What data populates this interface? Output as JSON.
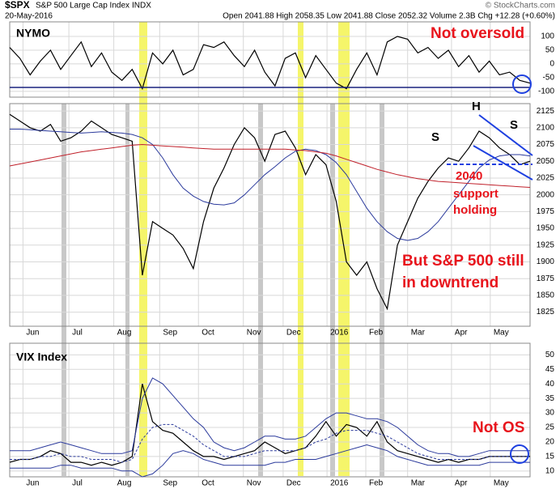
{
  "header": {
    "symbol": "$SPX",
    "name": "S&P 500 Large Cap Index",
    "exchange": "INDX",
    "date": "20-May-2016",
    "quote": "Open 2041.88  High 2058.35  Low 2041.88  Close 2052.32  Volume 2.3B  Chg +12.28 (+0.60%)",
    "credit": "© StockCharts.com"
  },
  "chart_data": [
    {
      "type": "line",
      "title": "NYMO",
      "annotations": [
        "Not oversold"
      ],
      "x": [
        0,
        1,
        2,
        3,
        4,
        5,
        6,
        7,
        8,
        9,
        10,
        11,
        12,
        13,
        14,
        15,
        16,
        17,
        18,
        19,
        20,
        21,
        22,
        23,
        24,
        25,
        26,
        27,
        28,
        29,
        30,
        31,
        32,
        33,
        34,
        35,
        36,
        37,
        38,
        39,
        40,
        41,
        42,
        43,
        44,
        45,
        46,
        47,
        48,
        49,
        50,
        51
      ],
      "xlim": [
        0,
        51
      ],
      "ylim": [
        -121,
        153
      ],
      "yticks": [
        100,
        50,
        0,
        -50,
        -100
      ],
      "grid": true,
      "series": [
        {
          "color": "#000000",
          "values": [
            60,
            20,
            -40,
            10,
            50,
            -20,
            30,
            80,
            -10,
            40,
            -30,
            -60,
            -20,
            -90,
            40,
            0,
            50,
            -40,
            -20,
            70,
            60,
            80,
            30,
            -10,
            50,
            -30,
            -80,
            20,
            40,
            -50,
            30,
            -20,
            -70,
            -90,
            -20,
            40,
            -40,
            80,
            100,
            90,
            40,
            60,
            20,
            50,
            -10,
            30,
            -30,
            10,
            -40,
            -30,
            -60,
            -70
          ]
        }
      ]
    },
    {
      "type": "line",
      "annotations": [
        "S",
        "H",
        "S",
        "2040",
        "support",
        "holding",
        "But S&P 500 still",
        "in downtrend"
      ],
      "x": [
        0,
        1,
        2,
        3,
        4,
        5,
        6,
        7,
        8,
        9,
        10,
        11,
        12,
        13,
        14,
        15,
        16,
        17,
        18,
        19,
        20,
        21,
        22,
        23,
        24,
        25,
        26,
        27,
        28,
        29,
        30,
        31,
        32,
        33,
        34,
        35,
        36,
        37,
        38,
        39,
        40,
        41,
        42,
        43,
        44,
        45,
        46,
        47,
        48,
        49,
        50,
        51
      ],
      "xlim": [
        0,
        51
      ],
      "xticks": [
        {
          "value": 1.3,
          "label": "Jun"
        },
        {
          "value": 5.8,
          "label": "Jul"
        },
        {
          "value": 10.2,
          "label": "Aug"
        },
        {
          "value": 14.7,
          "label": "Sep"
        },
        {
          "value": 18.5,
          "label": "Oct"
        },
        {
          "value": 22.9,
          "label": "Nov"
        },
        {
          "value": 26.8,
          "label": "Dec"
        },
        {
          "value": 31.1,
          "label": "2016"
        },
        {
          "value": 34.9,
          "label": "Feb"
        },
        {
          "value": 39,
          "label": "Mar"
        },
        {
          "value": 43.3,
          "label": "Apr"
        },
        {
          "value": 47.1,
          "label": "May"
        }
      ],
      "ylim": [
        1804,
        2136
      ],
      "yticks": [
        2125,
        2100,
        2075,
        2050,
        2025,
        2000,
        1975,
        1950,
        1925,
        1900,
        1875,
        1850,
        1825
      ],
      "grid": true,
      "series": [
        {
          "color": "#000000",
          "values": [
            2120,
            2110,
            2100,
            2095,
            2105,
            2080,
            2085,
            2095,
            2110,
            2100,
            2090,
            2085,
            2080,
            1880,
            1960,
            1950,
            1940,
            1920,
            1890,
            1960,
            2010,
            2040,
            2075,
            2100,
            2085,
            2050,
            2090,
            2095,
            2070,
            2030,
            2060,
            2045,
            1990,
            1900,
            1880,
            1900,
            1860,
            1830,
            1925,
            1960,
            1995,
            2020,
            2040,
            2055,
            2050,
            2070,
            2095,
            2085,
            2070,
            2060,
            2045,
            2050
          ]
        },
        {
          "color": "#2b3a9c",
          "values": [
            2098,
            2098,
            2097,
            2096,
            2095,
            2094,
            2093,
            2092,
            2093,
            2094,
            2093,
            2092,
            2090,
            2085,
            2075,
            2055,
            2030,
            2010,
            1998,
            1990,
            1986,
            1985,
            1988,
            2000,
            2015,
            2030,
            2042,
            2055,
            2065,
            2068,
            2066,
            2060,
            2048,
            2030,
            2005,
            1980,
            1960,
            1945,
            1935,
            1932,
            1935,
            1945,
            1960,
            1980,
            2000,
            2020,
            2040,
            2052,
            2058,
            2060,
            2060,
            2058
          ]
        },
        {
          "color": "#c0202a",
          "values": [
            2043,
            2046,
            2049,
            2052,
            2055,
            2058,
            2061,
            2064,
            2066,
            2068,
            2070,
            2072,
            2074,
            2075,
            2074,
            2073,
            2072,
            2071,
            2070,
            2069,
            2068,
            2068,
            2068,
            2068,
            2068,
            2068,
            2068,
            2068,
            2067,
            2066,
            2064,
            2062,
            2058,
            2053,
            2048,
            2043,
            2038,
            2034,
            2030,
            2027,
            2024,
            2022,
            2020,
            2019,
            2018,
            2017,
            2016,
            2015,
            2014,
            2013,
            2012,
            2011
          ]
        }
      ]
    },
    {
      "type": "line",
      "title": "VIX Index",
      "annotations": [
        "Not OS"
      ],
      "x": [
        0,
        1,
        2,
        3,
        4,
        5,
        6,
        7,
        8,
        9,
        10,
        11,
        12,
        13,
        14,
        15,
        16,
        17,
        18,
        19,
        20,
        21,
        22,
        23,
        24,
        25,
        26,
        27,
        28,
        29,
        30,
        31,
        32,
        33,
        34,
        35,
        36,
        37,
        38,
        39,
        40,
        41,
        42,
        43,
        44,
        45,
        46,
        47,
        48,
        49,
        50,
        51
      ],
      "xlim": [
        0,
        51
      ],
      "xticks": [
        {
          "value": 1.3,
          "label": "Jun"
        },
        {
          "value": 5.8,
          "label": "Jul"
        },
        {
          "value": 10.2,
          "label": "Aug"
        },
        {
          "value": 14.7,
          "label": "Sep"
        },
        {
          "value": 18.5,
          "label": "Oct"
        },
        {
          "value": 22.9,
          "label": "Nov"
        },
        {
          "value": 26.8,
          "label": "Dec"
        },
        {
          "value": 31.1,
          "label": "2016"
        },
        {
          "value": 34.9,
          "label": "Feb"
        },
        {
          "value": 39,
          "label": "Mar"
        },
        {
          "value": 43.3,
          "label": "Apr"
        },
        {
          "value": 47.1,
          "label": "May"
        }
      ],
      "ylim": [
        8,
        54
      ],
      "yticks": [
        50,
        45,
        40,
        35,
        30,
        25,
        20,
        15,
        10
      ],
      "grid": true,
      "series": [
        {
          "color": "#000000",
          "values": [
            13,
            14,
            14,
            15,
            17,
            16,
            13,
            13,
            12,
            13,
            12,
            13,
            15,
            40,
            27,
            24,
            23,
            20,
            17,
            15,
            15,
            14,
            15,
            16,
            17,
            20,
            18,
            16,
            17,
            18,
            22,
            27,
            22,
            26,
            25,
            22,
            27,
            20,
            17,
            16,
            15,
            14,
            13,
            14,
            13,
            14,
            14,
            15,
            15,
            15,
            15,
            15
          ]
        },
        {
          "color": "#2b3a9c",
          "values": [
            17,
            17,
            17,
            18,
            19,
            20,
            19,
            18,
            17,
            16,
            16,
            16,
            17,
            35,
            42,
            40,
            36,
            32,
            28,
            25,
            20,
            18,
            17,
            18,
            20,
            22,
            22,
            21,
            21,
            22,
            25,
            28,
            30,
            30,
            29,
            28,
            28,
            27,
            25,
            22,
            19,
            17,
            16,
            16,
            15,
            15,
            16,
            17,
            17,
            17,
            17,
            17
          ]
        },
        {
          "color": "#2b3a9c",
          "values": [
            11,
            11,
            11,
            11,
            11,
            12,
            12,
            11,
            11,
            11,
            11,
            10,
            10,
            8,
            9,
            12,
            16,
            17,
            16,
            14,
            13,
            12,
            12,
            12,
            12,
            12,
            13,
            13,
            14,
            14,
            14,
            15,
            16,
            17,
            18,
            19,
            18,
            17,
            15,
            14,
            13,
            12,
            12,
            12,
            12,
            12,
            12,
            13,
            13,
            13,
            13,
            13
          ]
        },
        {
          "color": "#2b3a9c",
          "dashed": true,
          "values": [
            14,
            14,
            14,
            15,
            15,
            16,
            15,
            15,
            14,
            14,
            14,
            13,
            14,
            21,
            25,
            26,
            26,
            24,
            22,
            19,
            17,
            15,
            15,
            15,
            16,
            17,
            17,
            17,
            17,
            18,
            20,
            21,
            23,
            24,
            24,
            24,
            23,
            22,
            20,
            18,
            16,
            15,
            14,
            14,
            14,
            14,
            14,
            15,
            15,
            15,
            15,
            15
          ]
        }
      ]
    }
  ]
}
